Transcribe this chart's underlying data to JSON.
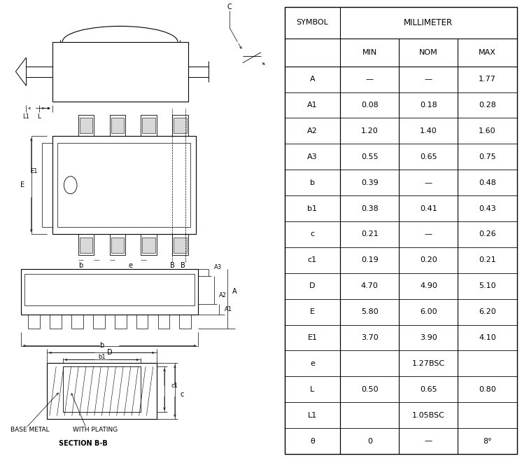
{
  "table_headers": [
    "SYMBOL",
    "MIN",
    "NOM",
    "MAX"
  ],
  "millimeter_header": "MILLIMETER",
  "rows": [
    [
      "A",
      "—",
      "—",
      "1.77"
    ],
    [
      "A1",
      "0.08",
      "0.18",
      "0.28"
    ],
    [
      "A2",
      "1.20",
      "1.40",
      "1.60"
    ],
    [
      "A3",
      "0.55",
      "0.65",
      "0.75"
    ],
    [
      "b",
      "0.39",
      "—",
      "0.48"
    ],
    [
      "b1",
      "0.38",
      "0.41",
      "0.43"
    ],
    [
      "c",
      "0.21",
      "—",
      "0.26"
    ],
    [
      "c1",
      "0.19",
      "0.20",
      "0.21"
    ],
    [
      "D",
      "4.70",
      "4.90",
      "5.10"
    ],
    [
      "E",
      "5.80",
      "6.00",
      "6.20"
    ],
    [
      "E1",
      "3.70",
      "3.90",
      "4.10"
    ],
    [
      "e",
      "1.27BSC",
      null,
      null
    ],
    [
      "L",
      "0.50",
      "0.65",
      "0.80"
    ],
    [
      "L1",
      "1.05BSC",
      null,
      null
    ],
    [
      "θ",
      "0",
      "—",
      "8°"
    ]
  ],
  "bg_color": "#ffffff",
  "line_color": "#000000",
  "font_size": 8,
  "header_font_size": 8
}
